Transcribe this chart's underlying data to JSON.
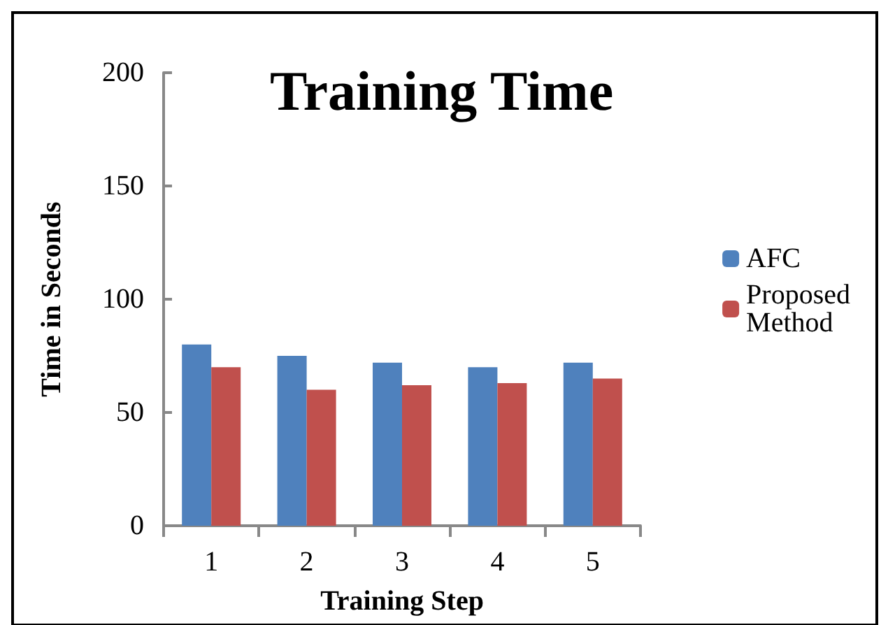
{
  "chart_data": {
    "type": "bar",
    "title": "Training Time",
    "xlabel": "Training Step",
    "ylabel": "Time in Seconds",
    "categories": [
      "1",
      "2",
      "3",
      "4",
      "5"
    ],
    "series": [
      {
        "name": "AFC",
        "color": "#4f81bd",
        "values": [
          80,
          75,
          72,
          70,
          72
        ]
      },
      {
        "name": "Proposed Method",
        "color": "#c0504d",
        "values": [
          70,
          60,
          62,
          63,
          65
        ]
      }
    ],
    "ylim": [
      0,
      200
    ],
    "yticks": [
      0,
      50,
      100,
      150,
      200
    ],
    "grid": false,
    "legend": "right"
  }
}
